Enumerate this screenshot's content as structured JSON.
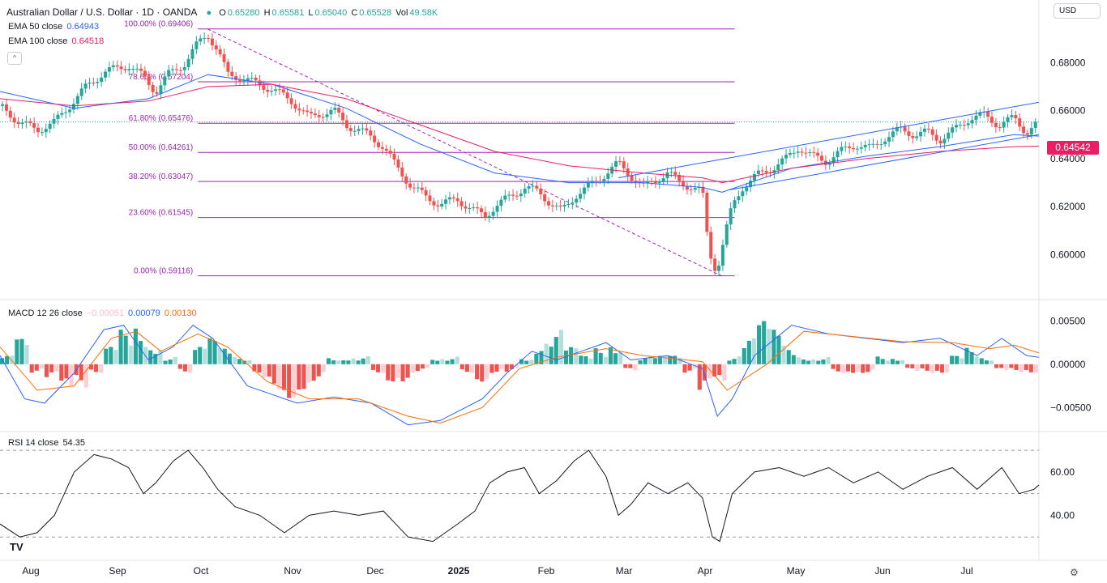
{
  "header": {
    "title": "Australian Dollar / U.S. Dollar · 1D · OANDA",
    "open_label": "O",
    "open": "0.65280",
    "high_label": "H",
    "high": "0.65581",
    "low_label": "L",
    "low": "0.65040",
    "close_label": "C",
    "close": "0.65528",
    "vol_label": "Vol",
    "vol": "49.58K",
    "currency": "USD"
  },
  "indicators": {
    "ema50_label": "EMA 50 close",
    "ema50_value": "0.64943",
    "ema100_label": "EMA 100 close",
    "ema100_value": "0.64518",
    "macd_label": "MACD 12 26 close",
    "macd_hist": "−0.00051",
    "macd_line": "0.00079",
    "macd_signal": "0.00130",
    "rsi_label": "RSI 14 close",
    "rsi_value": "54.35"
  },
  "price_tag": "0.64542",
  "colors": {
    "up": "#26a69a",
    "down": "#ef5350",
    "ema50": "#2962ff",
    "ema100": "#e91e63",
    "fib": "#9c27b0",
    "macd": "#2962ff",
    "signal": "#ff6d00",
    "rsi": "#131722"
  },
  "chart_data": [
    {
      "type": "candlestick",
      "x_axis": [
        "Aug",
        "Sep",
        "Oct",
        "Nov",
        "Dec",
        "2025",
        "Feb",
        "Mar",
        "Apr",
        "May",
        "Jun",
        "Jul"
      ],
      "y_ticks": [
        "0.68000",
        "0.66000",
        "0.64000",
        "0.62000",
        "0.60000"
      ],
      "ylim": [
        0.588,
        0.696
      ],
      "fib_levels": [
        {
          "label": "100.00% (0.69406)",
          "value": 0.69406
        },
        {
          "label": "78.60% (0.67204)",
          "value": 0.67204
        },
        {
          "label": "61.80% (0.65476)",
          "value": 0.65476
        },
        {
          "label": "50.00% (0.64261)",
          "value": 0.64261
        },
        {
          "label": "38.20% (0.63047)",
          "value": 0.63047
        },
        {
          "label": "23.60% (0.61545)",
          "value": 0.61545
        },
        {
          "label": "0.00% (0.59116)",
          "value": 0.59116
        }
      ],
      "close_path": [
        [
          0,
          0.662
        ],
        [
          8,
          0.655
        ],
        [
          15,
          0.652
        ],
        [
          22,
          0.655
        ],
        [
          28,
          0.662
        ],
        [
          35,
          0.67
        ],
        [
          42,
          0.676
        ],
        [
          52,
          0.679
        ],
        [
          58,
          0.674
        ],
        [
          63,
          0.668
        ],
        [
          68,
          0.675
        ],
        [
          75,
          0.68
        ],
        [
          80,
          0.688
        ],
        [
          84,
          0.692
        ],
        [
          88,
          0.685
        ],
        [
          92,
          0.675
        ],
        [
          97,
          0.674
        ],
        [
          104,
          0.671
        ],
        [
          110,
          0.669
        ],
        [
          118,
          0.664
        ],
        [
          125,
          0.657
        ],
        [
          130,
          0.659
        ],
        [
          135,
          0.66
        ],
        [
          140,
          0.654
        ],
        [
          145,
          0.652
        ],
        [
          150,
          0.649
        ],
        [
          155,
          0.645
        ],
        [
          160,
          0.637
        ],
        [
          166,
          0.629
        ],
        [
          172,
          0.624
        ],
        [
          178,
          0.621
        ],
        [
          185,
          0.623
        ],
        [
          192,
          0.618
        ],
        [
          196,
          0.616
        ],
        [
          200,
          0.62
        ],
        [
          206,
          0.624
        ],
        [
          212,
          0.628
        ],
        [
          218,
          0.626
        ],
        [
          223,
          0.621
        ],
        [
          227,
          0.618
        ],
        [
          233,
          0.625
        ],
        [
          239,
          0.629
        ],
        [
          245,
          0.634
        ],
        [
          250,
          0.638
        ],
        [
          255,
          0.633
        ],
        [
          260,
          0.628
        ],
        [
          265,
          0.631
        ],
        [
          270,
          0.634
        ],
        [
          275,
          0.63
        ],
        [
          280,
          0.628
        ],
        [
          284,
          0.626
        ],
        [
          286,
          0.607
        ],
        [
          288,
          0.596
        ],
        [
          290,
          0.594
        ],
        [
          292,
          0.603
        ],
        [
          294,
          0.612
        ],
        [
          296,
          0.62
        ],
        [
          300,
          0.628
        ],
        [
          306,
          0.633
        ],
        [
          312,
          0.636
        ],
        [
          318,
          0.64
        ],
        [
          323,
          0.645
        ],
        [
          328,
          0.641
        ],
        [
          334,
          0.639
        ],
        [
          340,
          0.643
        ],
        [
          346,
          0.646
        ],
        [
          352,
          0.644
        ],
        [
          358,
          0.649
        ],
        [
          364,
          0.652
        ],
        [
          370,
          0.65
        ],
        [
          375,
          0.651
        ],
        [
          380,
          0.648
        ],
        [
          386,
          0.652
        ],
        [
          392,
          0.657
        ],
        [
          398,
          0.658
        ],
        [
          404,
          0.654
        ],
        [
          410,
          0.657
        ],
        [
          415,
          0.651
        ],
        [
          420,
          0.655
        ]
      ],
      "ema50_path": [
        [
          0,
          0.668
        ],
        [
          30,
          0.661
        ],
        [
          60,
          0.665
        ],
        [
          84,
          0.675
        ],
        [
          110,
          0.671
        ],
        [
          140,
          0.661
        ],
        [
          170,
          0.646
        ],
        [
          200,
          0.634
        ],
        [
          230,
          0.63
        ],
        [
          260,
          0.63
        ],
        [
          284,
          0.628
        ],
        [
          292,
          0.626
        ],
        [
          320,
          0.636
        ],
        [
          350,
          0.641
        ],
        [
          380,
          0.645
        ],
        [
          410,
          0.65
        ],
        [
          420,
          0.6494
        ]
      ],
      "ema100_path": [
        [
          0,
          0.665
        ],
        [
          30,
          0.662
        ],
        [
          60,
          0.664
        ],
        [
          84,
          0.67
        ],
        [
          110,
          0.671
        ],
        [
          140,
          0.665
        ],
        [
          170,
          0.654
        ],
        [
          200,
          0.643
        ],
        [
          230,
          0.637
        ],
        [
          260,
          0.634
        ],
        [
          284,
          0.632
        ],
        [
          292,
          0.63
        ],
        [
          320,
          0.636
        ],
        [
          350,
          0.64
        ],
        [
          380,
          0.643
        ],
        [
          410,
          0.645
        ],
        [
          420,
          0.6452
        ]
      ],
      "channel_upper": [
        [
          250,
          0.632
        ],
        [
          420,
          0.6635
        ]
      ],
      "channel_lower": [
        [
          295,
          0.627
        ],
        [
          420,
          0.65
        ]
      ]
    },
    {
      "type": "macd",
      "y_ticks": [
        "0.00500",
        "0.00000",
        "−0.00500"
      ],
      "ylim": [
        -0.0075,
        0.007
      ],
      "macd_path": [
        [
          0,
          0.001
        ],
        [
          10,
          -0.004
        ],
        [
          18,
          -0.0045
        ],
        [
          30,
          -0.001
        ],
        [
          42,
          0.004
        ],
        [
          50,
          0.0045
        ],
        [
          60,
          0.0005
        ],
        [
          70,
          0.002
        ],
        [
          78,
          0.0045
        ],
        [
          86,
          0.003
        ],
        [
          100,
          -0.0025
        ],
        [
          110,
          -0.0035
        ],
        [
          120,
          -0.0045
        ],
        [
          135,
          -0.0038
        ],
        [
          150,
          -0.0045
        ],
        [
          165,
          -0.007
        ],
        [
          178,
          -0.0065
        ],
        [
          195,
          -0.004
        ],
        [
          205,
          -0.001
        ],
        [
          215,
          0.0015
        ],
        [
          225,
          0.0005
        ],
        [
          235,
          0.0015
        ],
        [
          245,
          0.0025
        ],
        [
          255,
          0.0005
        ],
        [
          270,
          0.001
        ],
        [
          284,
          -0.0005
        ],
        [
          290,
          -0.006
        ],
        [
          296,
          -0.004
        ],
        [
          305,
          0.001
        ],
        [
          320,
          0.0045
        ],
        [
          335,
          0.0035
        ],
        [
          350,
          0.003
        ],
        [
          365,
          0.0025
        ],
        [
          380,
          0.003
        ],
        [
          395,
          0.001
        ],
        [
          405,
          0.003
        ],
        [
          415,
          0.001
        ],
        [
          420,
          0.0008
        ]
      ],
      "signal_path": [
        [
          0,
          0.002
        ],
        [
          15,
          -0.003
        ],
        [
          30,
          -0.0025
        ],
        [
          45,
          0.003
        ],
        [
          55,
          0.0038
        ],
        [
          65,
          0.0015
        ],
        [
          80,
          0.0035
        ],
        [
          92,
          0.002
        ],
        [
          108,
          -0.002
        ],
        [
          125,
          -0.004
        ],
        [
          145,
          -0.004
        ],
        [
          165,
          -0.006
        ],
        [
          178,
          -0.0068
        ],
        [
          195,
          -0.005
        ],
        [
          210,
          -0.0005
        ],
        [
          225,
          0.0008
        ],
        [
          245,
          0.0018
        ],
        [
          260,
          0.001
        ],
        [
          284,
          0.0003
        ],
        [
          294,
          -0.003
        ],
        [
          310,
          0.0
        ],
        [
          325,
          0.0038
        ],
        [
          345,
          0.0032
        ],
        [
          365,
          0.0026
        ],
        [
          385,
          0.0025
        ],
        [
          400,
          0.0018
        ],
        [
          410,
          0.0022
        ],
        [
          420,
          0.0013
        ]
      ],
      "hist": [
        0.001,
        0.003,
        -0.001,
        -0.002,
        -0.004,
        -0.003,
        -0.001,
        0.002,
        0.004,
        0.005,
        0.003,
        0.001,
        -0.001,
        0.002,
        0.003,
        0.002,
        0.001,
        -0.002,
        -0.003,
        -0.004,
        -0.003,
        -0.002,
        0.001,
        0.001,
        0.001,
        -0.001,
        -0.002,
        -0.002,
        -0.001,
        0.001,
        0.001,
        -0.001,
        -0.002,
        -0.001,
        -0.001,
        0.001,
        0.003,
        0.004,
        0.002,
        0.001,
        0.002,
        0.003,
        -0.001,
        0.001,
        0.001,
        0.001,
        -0.001,
        -0.004,
        -0.003,
        0.001,
        0.003,
        0.005,
        0.004,
        0.002,
        0.001,
        0.001,
        -0.001,
        -0.001,
        -0.001,
        0.001,
        0.001,
        -0.001,
        -0.001,
        -0.001,
        0.001,
        0.002,
        0.001,
        -0.001,
        -0.001,
        -0.001
      ]
    },
    {
      "type": "rsi",
      "y_ticks": [
        "60.00",
        "40.00"
      ],
      "ylim": [
        20,
        76
      ],
      "bands": [
        70,
        50,
        30
      ],
      "rsi_path": [
        [
          0,
          36
        ],
        [
          8,
          30
        ],
        [
          15,
          32
        ],
        [
          22,
          40
        ],
        [
          30,
          60
        ],
        [
          38,
          68
        ],
        [
          45,
          66
        ],
        [
          52,
          62
        ],
        [
          58,
          50
        ],
        [
          63,
          55
        ],
        [
          70,
          65
        ],
        [
          76,
          70
        ],
        [
          82,
          62
        ],
        [
          88,
          52
        ],
        [
          95,
          44
        ],
        [
          105,
          40
        ],
        [
          115,
          32
        ],
        [
          125,
          40
        ],
        [
          135,
          42
        ],
        [
          145,
          40
        ],
        [
          155,
          42
        ],
        [
          165,
          30
        ],
        [
          175,
          28
        ],
        [
          185,
          36
        ],
        [
          192,
          42
        ],
        [
          198,
          55
        ],
        [
          205,
          60
        ],
        [
          212,
          62
        ],
        [
          218,
          50
        ],
        [
          225,
          56
        ],
        [
          232,
          65
        ],
        [
          238,
          70
        ],
        [
          245,
          58
        ],
        [
          250,
          40
        ],
        [
          255,
          45
        ],
        [
          262,
          55
        ],
        [
          270,
          50
        ],
        [
          278,
          55
        ],
        [
          284,
          48
        ],
        [
          288,
          30
        ],
        [
          291,
          28
        ],
        [
          296,
          50
        ],
        [
          305,
          60
        ],
        [
          315,
          62
        ],
        [
          325,
          58
        ],
        [
          335,
          62
        ],
        [
          345,
          55
        ],
        [
          355,
          60
        ],
        [
          365,
          52
        ],
        [
          375,
          58
        ],
        [
          385,
          62
        ],
        [
          395,
          52
        ],
        [
          405,
          62
        ],
        [
          412,
          50
        ],
        [
          418,
          52
        ],
        [
          420,
          54
        ]
      ]
    }
  ]
}
